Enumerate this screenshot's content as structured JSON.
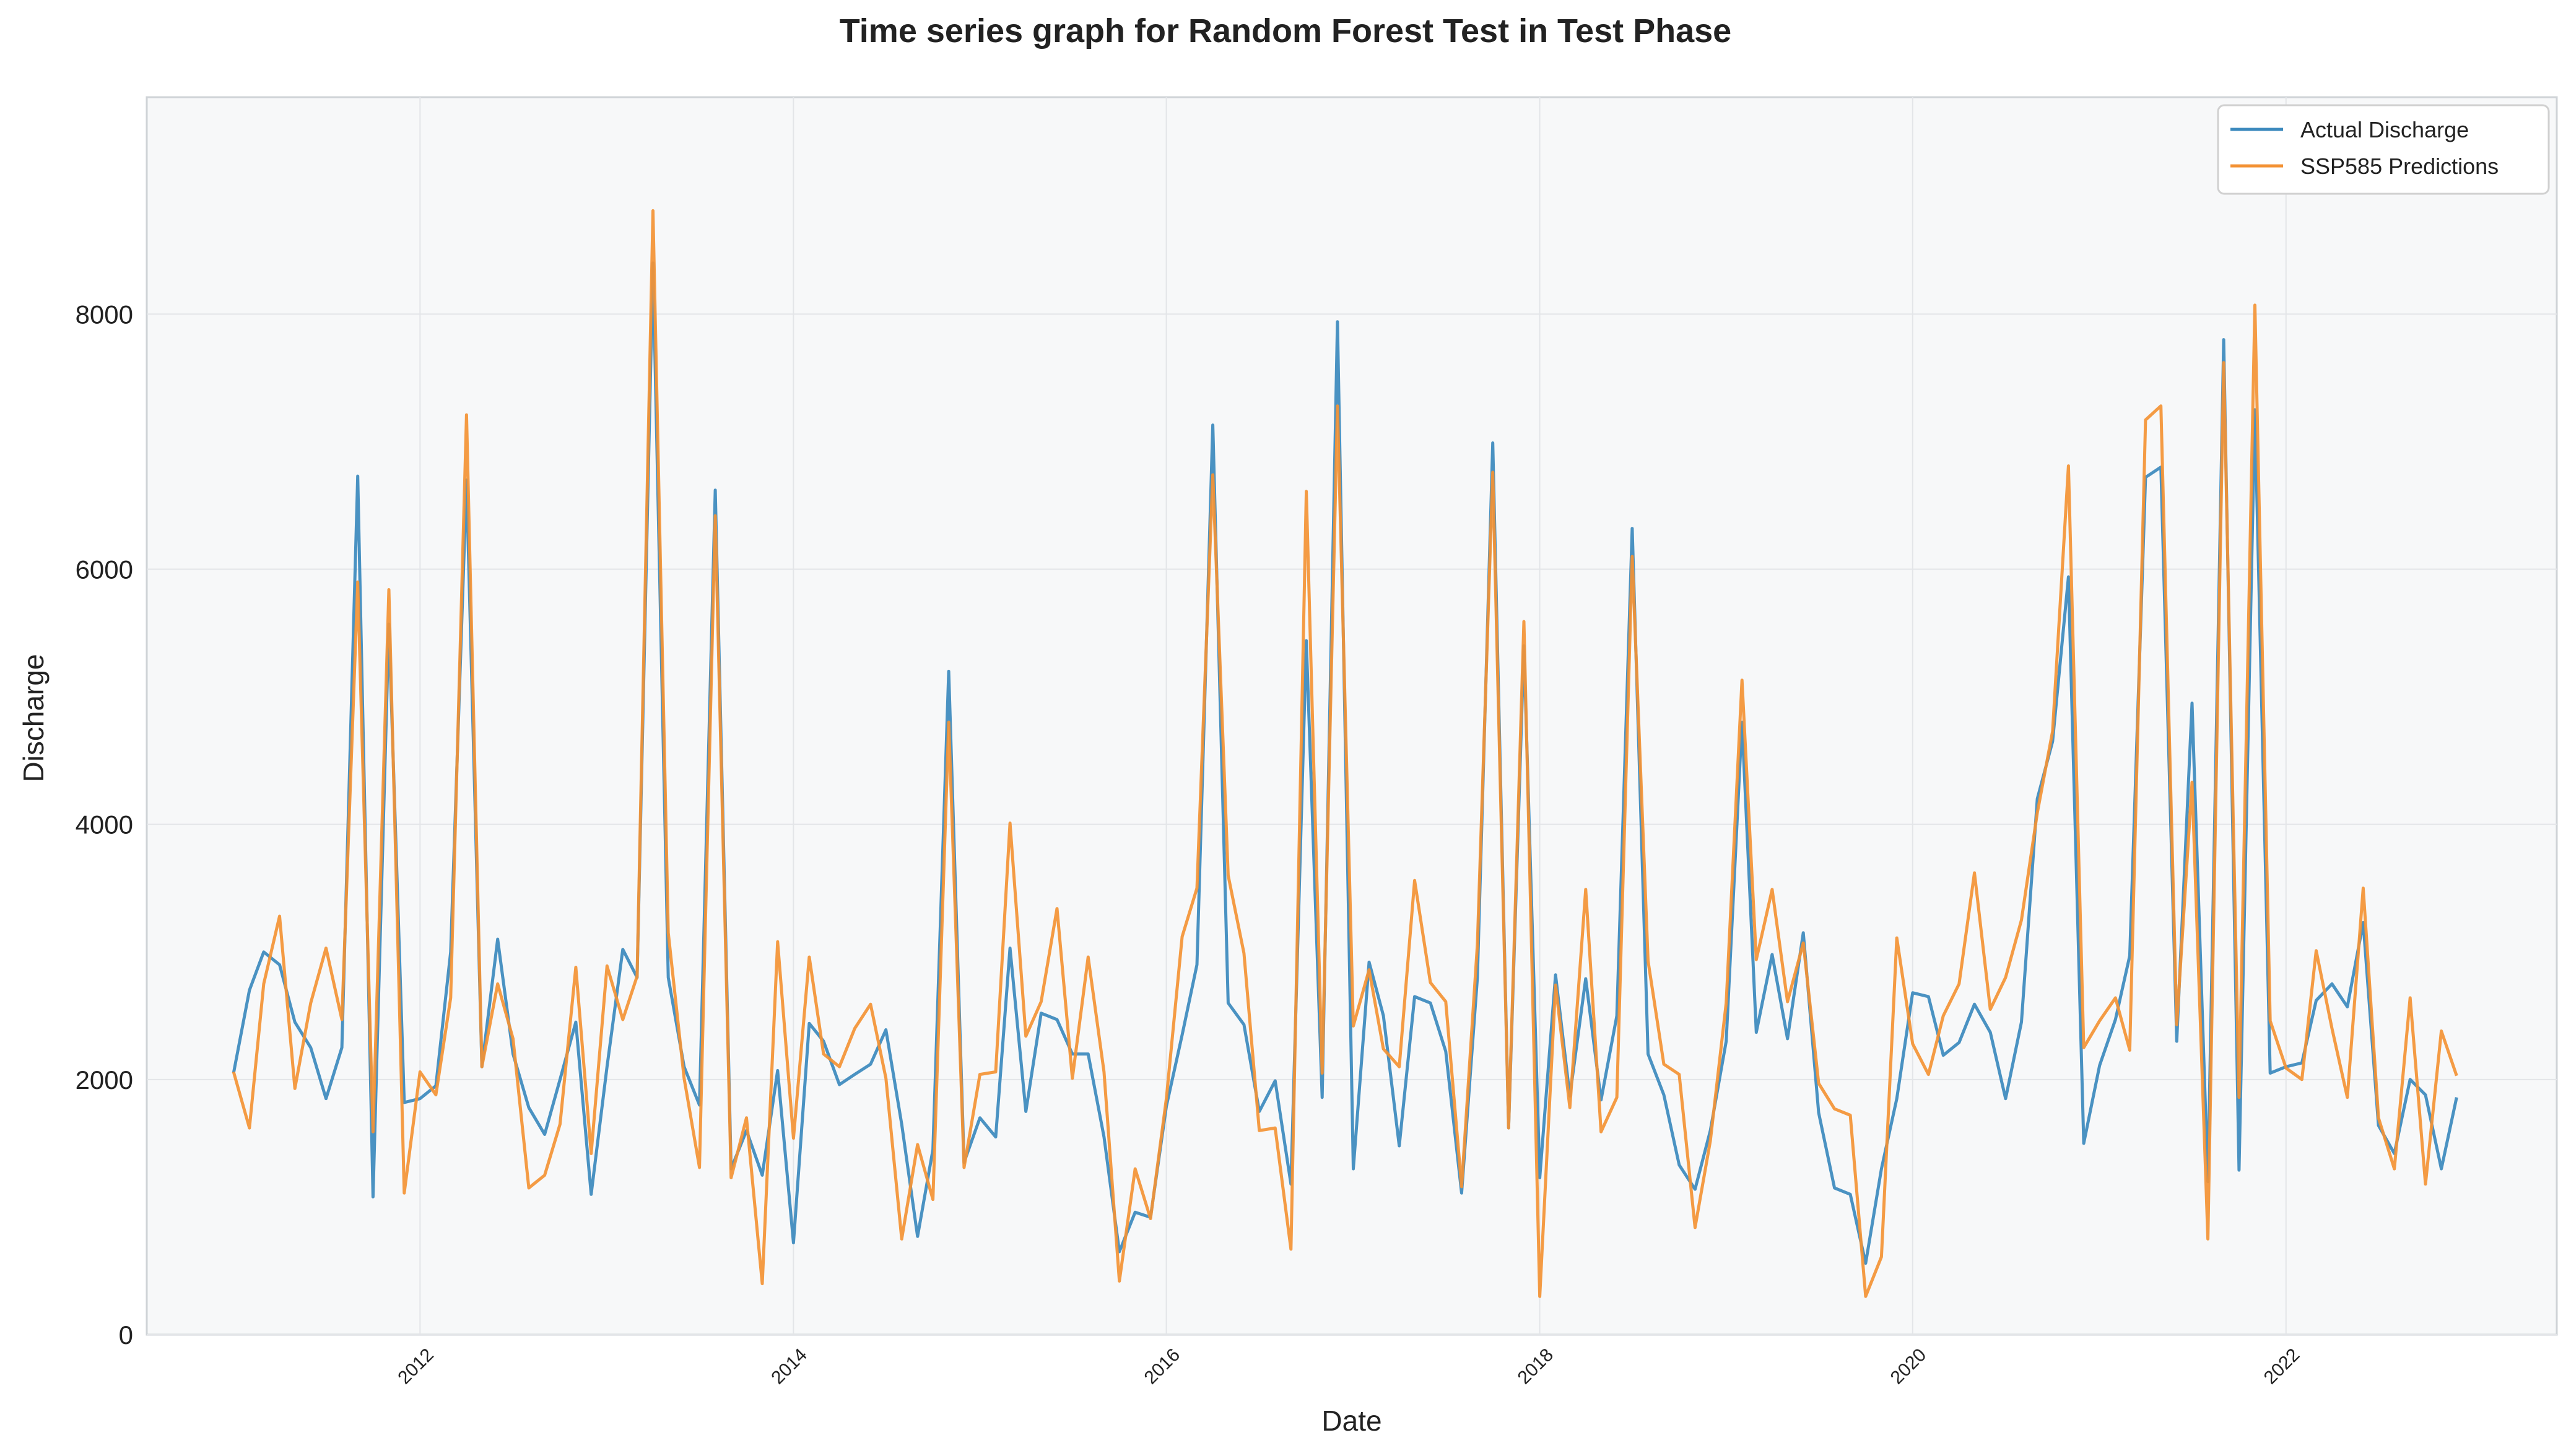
{
  "chart_data": {
    "type": "line",
    "title": "Time series graph for Random Forest Test in Test Phase",
    "xlabel": "Date",
    "ylabel": "Discharge",
    "x_start": "2011-01",
    "x_frequency": "monthly",
    "xlim": [
      "2010-07-15",
      "2023-06-15"
    ],
    "ylim": [
      0,
      9700
    ],
    "x_ticks": [
      "2012",
      "2014",
      "2016",
      "2018",
      "2020",
      "2022"
    ],
    "y_ticks": [
      0,
      2000,
      4000,
      6000,
      8000
    ],
    "y_tick_labels": [
      "0",
      "2000",
      "4000",
      "6000",
      "8000"
    ],
    "grid": true,
    "legend_position": "top-right",
    "plot_background": "#f7f8f9",
    "series": [
      {
        "name": "Actual Discharge",
        "color": "#3b89bd",
        "values": [
          2050,
          2700,
          3000,
          2900,
          2450,
          2250,
          1850,
          2250,
          6730,
          1080,
          5570,
          1820,
          1850,
          1950,
          3000,
          6700,
          2100,
          3100,
          2200,
          1780,
          1570,
          2000,
          2450,
          1100,
          2100,
          3020,
          2800,
          8400,
          2800,
          2100,
          1800,
          6620,
          1300,
          1600,
          1250,
          2070,
          720,
          2440,
          2300,
          1960,
          2040,
          2120,
          2390,
          1650,
          770,
          1450,
          5200,
          1350,
          1700,
          1550,
          3030,
          1750,
          2520,
          2470,
          2200,
          2200,
          1550,
          650,
          960,
          920,
          1790,
          2350,
          2900,
          7130,
          2600,
          2430,
          1750,
          1990,
          1180,
          5440,
          1860,
          7940,
          1300,
          2920,
          2500,
          1480,
          2650,
          2600,
          2220,
          1110,
          2800,
          6990,
          1620,
          5400,
          1230,
          2820,
          1870,
          2790,
          1840,
          2500,
          6320,
          2200,
          1880,
          1330,
          1140,
          1600,
          2300,
          4800,
          2370,
          2980,
          2320,
          3150,
          1740,
          1150,
          1100,
          560,
          1300,
          1850,
          2680,
          2650,
          2190,
          2290,
          2590,
          2370,
          1850,
          2450,
          4200,
          4650,
          5940,
          1500,
          2110,
          2470,
          2970,
          6720,
          6800,
          2300,
          4950,
          1200,
          7800,
          1290,
          7250,
          2050,
          2100,
          2130,
          2620,
          2750,
          2570,
          3230,
          1640,
          1420,
          2000,
          1880,
          1300,
          1860
        ]
      },
      {
        "name": "SSP585 Predictions",
        "color": "#f39234",
        "values": [
          2060,
          1620,
          2750,
          3280,
          1930,
          2600,
          3030,
          2470,
          5900,
          1590,
          5840,
          1110,
          2060,
          1880,
          2640,
          7210,
          2100,
          2750,
          2320,
          1150,
          1250,
          1650,
          2880,
          1420,
          2890,
          2470,
          2810,
          8810,
          3150,
          2010,
          1310,
          6420,
          1230,
          1700,
          400,
          3080,
          1540,
          2960,
          2200,
          2100,
          2400,
          2590,
          2010,
          750,
          1490,
          1060,
          4800,
          1310,
          2040,
          2060,
          4010,
          2340,
          2610,
          3340,
          2010,
          2960,
          2060,
          420,
          1300,
          910,
          1850,
          3120,
          3500,
          6740,
          3600,
          2990,
          1600,
          1620,
          670,
          6610,
          2050,
          7280,
          2420,
          2860,
          2240,
          2100,
          3560,
          2760,
          2610,
          1160,
          3060,
          6760,
          1620,
          5590,
          300,
          2740,
          1780,
          3490,
          1590,
          1860,
          6100,
          2930,
          2120,
          2040,
          840,
          1520,
          2600,
          5130,
          2940,
          3490,
          2610,
          3070,
          1970,
          1770,
          1720,
          300,
          610,
          3110,
          2280,
          2040,
          2500,
          2750,
          3620,
          2550,
          2800,
          3250,
          4090,
          4730,
          6810,
          2250,
          2460,
          2640,
          2230,
          7170,
          7280,
          2430,
          4330,
          750,
          7620,
          1860,
          8070,
          2460,
          2090,
          2000,
          3010,
          2400,
          1860,
          3500,
          1700,
          1300,
          2640,
          1180,
          2380,
          2030
        ]
      }
    ]
  }
}
